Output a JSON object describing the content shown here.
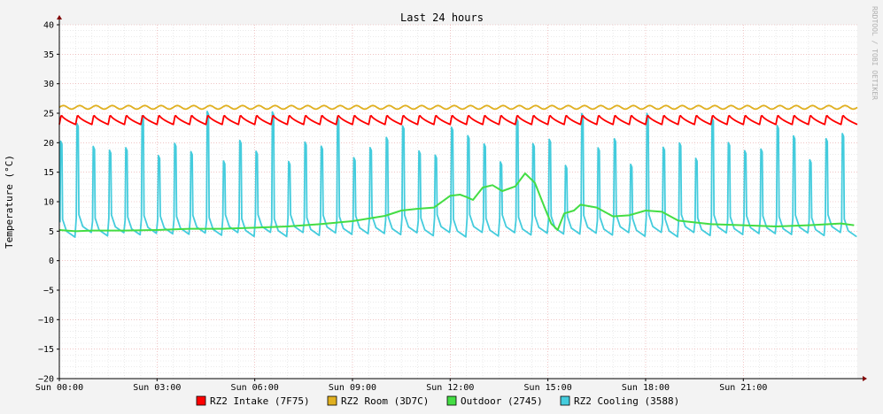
{
  "chart_data": {
    "type": "line",
    "title": "Last 24 hours",
    "ylabel": "Temperature (°C)",
    "xlabel": "",
    "watermark": "RRDTOOL / TOBI OETIKER",
    "ylim": [
      -20,
      40
    ],
    "xlim_hours": [
      0,
      24.5
    ],
    "y_ticks": [
      40,
      35,
      30,
      25,
      20,
      15,
      10,
      5,
      0,
      -5,
      -10,
      -15,
      -20
    ],
    "y_tick_labels": [
      "40",
      "35",
      "30",
      "25",
      "20",
      "15",
      "10",
      "5",
      "0",
      "−5",
      "−10",
      "−15",
      "−20"
    ],
    "x_ticks": [
      0,
      3,
      6,
      9,
      12,
      15,
      18,
      21
    ],
    "x_tick_labels": [
      "Sun 00:00",
      "Sun 03:00",
      "Sun 06:00",
      "Sun 09:00",
      "Sun 12:00",
      "Sun 15:00",
      "Sun 18:00",
      "Sun 21:00"
    ],
    "grid": true,
    "legend_position": "bottom",
    "series": [
      {
        "name": "RZ2 Intake (7F75)",
        "color": "#ff0000",
        "pattern": "sawtooth",
        "low": 23.1,
        "high": 24.8,
        "period_hours": 0.5
      },
      {
        "name": "RZ2 Room (3D7C)",
        "color": "#e0b020",
        "pattern": "ripple",
        "low": 25.7,
        "high": 26.3,
        "period_hours": 0.5
      },
      {
        "name": "Outdoor (2745)",
        "color": "#44dd44",
        "pattern": "line",
        "x": [
          0.0,
          0.5,
          1.0,
          2.0,
          3.0,
          4.0,
          5.0,
          6.0,
          7.0,
          8.0,
          9.0,
          10.0,
          10.5,
          11.0,
          11.5,
          12.0,
          12.3,
          12.5,
          12.7,
          13.0,
          13.3,
          13.6,
          14.0,
          14.3,
          14.6,
          14.9,
          15.1,
          15.3,
          15.5,
          15.8,
          16.0,
          16.5,
          17.0,
          17.5,
          18.0,
          18.5,
          19.0,
          20.0,
          21.0,
          22.0,
          23.0,
          24.0,
          24.4
        ],
        "values": [
          5.2,
          5.0,
          5.1,
          5.1,
          5.2,
          5.4,
          5.4,
          5.6,
          5.8,
          6.2,
          6.7,
          7.6,
          8.5,
          8.8,
          9.0,
          11.0,
          11.2,
          10.8,
          10.3,
          12.4,
          12.8,
          11.8,
          12.6,
          14.8,
          13.2,
          9.0,
          6.3,
          5.2,
          8.0,
          8.5,
          9.5,
          9.0,
          7.5,
          7.7,
          8.5,
          8.3,
          6.8,
          6.2,
          6.0,
          5.8,
          6.0,
          6.3,
          6.0
        ]
      },
      {
        "name": "RZ2 Cooling (3588)",
        "color": "#44ccdd",
        "pattern": "spikes",
        "low": 4.0,
        "high_min": 15.0,
        "high_max": 25.5,
        "period_hours": 0.5
      }
    ]
  }
}
